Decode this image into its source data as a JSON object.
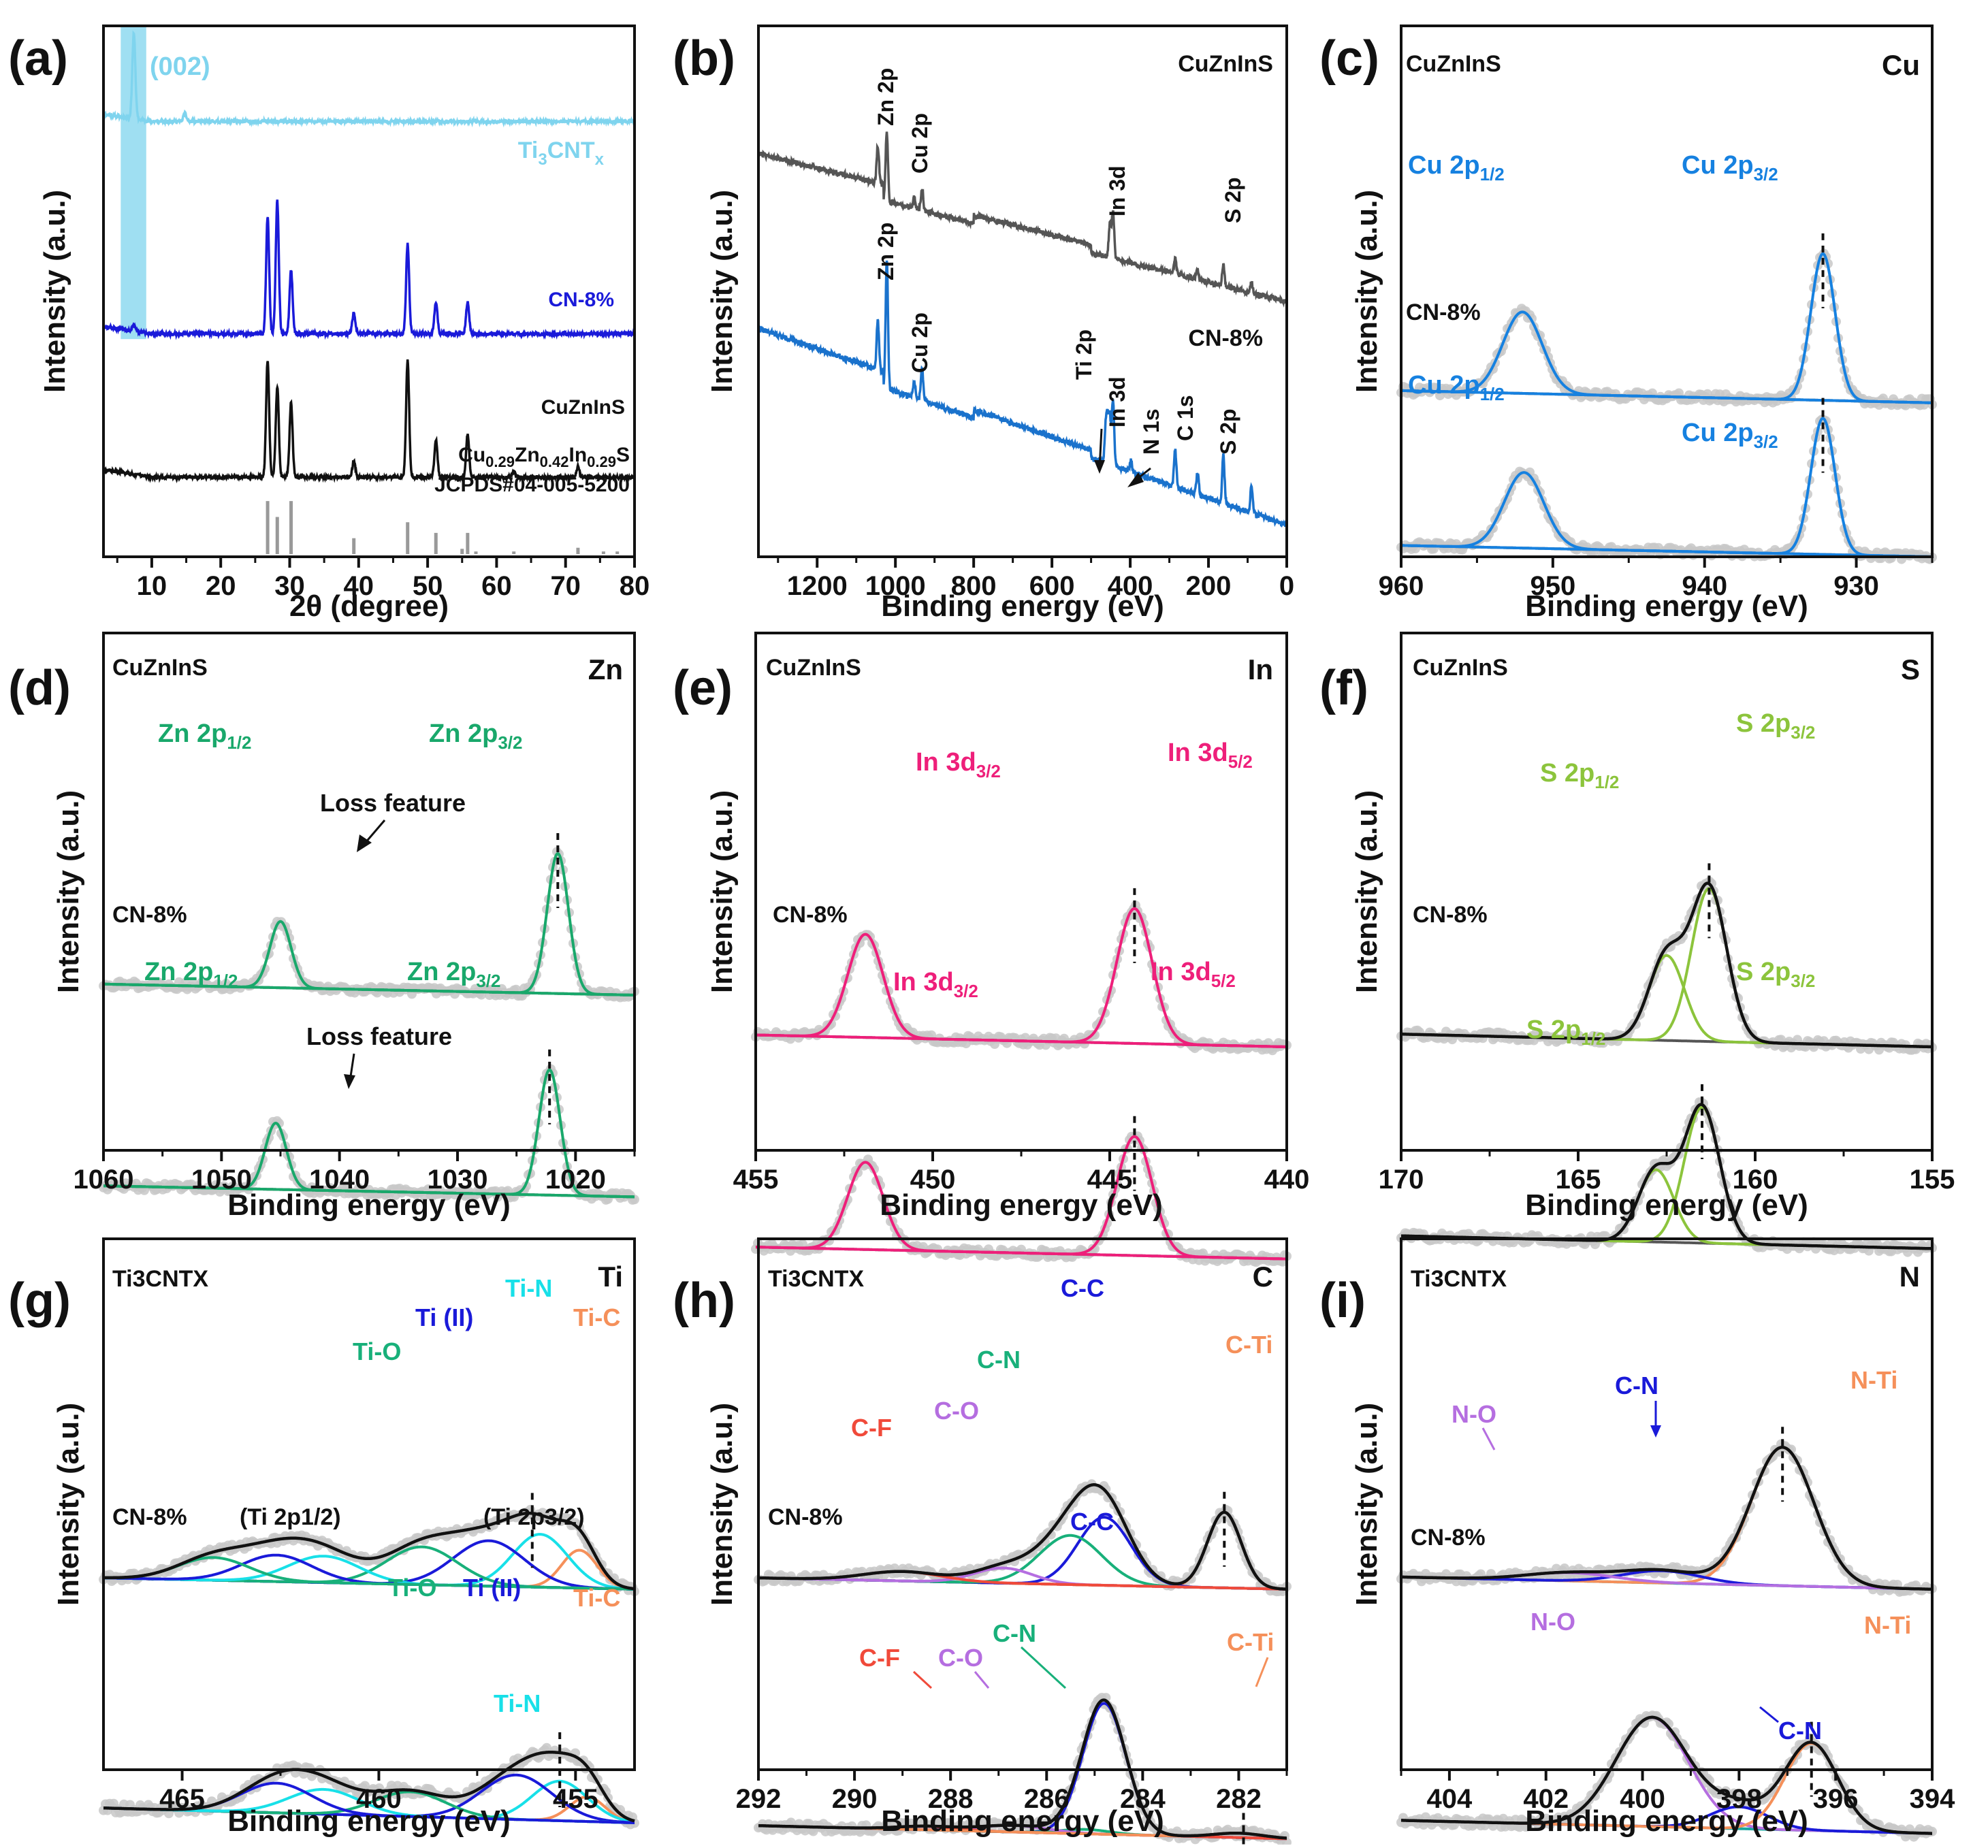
{
  "figure": {
    "panel_labels": [
      "(a)",
      "(b)",
      "(c)",
      "(d)",
      "(e)",
      "(f)",
      "(g)",
      "(h)",
      "(i)"
    ],
    "ylabel": "Intensity (a.u.)",
    "xlabel_xps": "Binding energy (eV)",
    "xlabel_xrd": "2θ (degree)"
  },
  "colors": {
    "gray_data": "#c8c8c8",
    "dark": "#111111",
    "baseline": "#555555",
    "ti3cntx_xrd": "#7fd4ee",
    "cn8_xrd": "#1a1ad9",
    "zn": "#19a86b",
    "cu": "#1681e0",
    "in": "#ee1f7a",
    "s": "#8cc43c",
    "blue": "#1a1ad9",
    "cyan": "#18e0e8",
    "green": "#18b07a",
    "orange": "#f5905a",
    "purple": "#b56ee0",
    "red": "#f04a3a",
    "teal": "#1aa8a0"
  },
  "chart_data": [
    {
      "panel": "(a)",
      "type": "line",
      "xlabel": "2θ (degree)",
      "ylabel": "Intensity (a.u.)",
      "xlim": [
        3,
        80
      ],
      "xticks": [
        10,
        20,
        30,
        40,
        50,
        60,
        70,
        80
      ],
      "highlight": {
        "label": "(002)",
        "x_range": [
          5.5,
          9.2
        ]
      },
      "series": [
        {
          "name": "Ti3CNTx",
          "label_main": "Ti",
          "label_sub1": "3",
          "label_mid": "CNT",
          "label_sub2": "x",
          "base": 0.82,
          "peaks": [
            [
              7.4,
              0.16
            ],
            [
              14.8,
              0.015
            ]
          ]
        },
        {
          "name": "CN-8%",
          "label": "CN-8%",
          "base": 0.42,
          "peaks": [
            [
              7.4,
              0.01
            ],
            [
              26.8,
              0.22
            ],
            [
              28.2,
              0.25
            ],
            [
              30.2,
              0.12
            ],
            [
              39.3,
              0.04
            ],
            [
              47.1,
              0.17
            ],
            [
              51.2,
              0.06
            ],
            [
              55.8,
              0.06
            ]
          ]
        },
        {
          "name": "CuZnInS",
          "label": "CuZnInS",
          "base": 0.15,
          "peaks": [
            [
              26.8,
              0.22
            ],
            [
              28.2,
              0.17
            ],
            [
              30.2,
              0.14
            ],
            [
              39.3,
              0.03
            ],
            [
              47.1,
              0.22
            ],
            [
              51.2,
              0.07
            ],
            [
              55.8,
              0.08
            ],
            [
              62.5,
              0.01
            ],
            [
              71.8,
              0.02
            ]
          ]
        }
      ],
      "reference": {
        "formula": "Cu0.29Zn0.42In0.29S",
        "label_parts": [
          "Cu",
          "0.29",
          "Zn",
          "0.42",
          "In",
          "0.29",
          "S"
        ],
        "jcpds": "JCPDS#04-005-5200",
        "sticks": [
          [
            26.8,
            0.1
          ],
          [
            28.2,
            0.07
          ],
          [
            30.2,
            0.1
          ],
          [
            39.3,
            0.03
          ],
          [
            47.1,
            0.06
          ],
          [
            51.2,
            0.04
          ],
          [
            55.0,
            0.01
          ],
          [
            55.8,
            0.04
          ],
          [
            57.0,
            0.005
          ],
          [
            62.5,
            0.005
          ],
          [
            71.8,
            0.012
          ],
          [
            75.5,
            0.005
          ],
          [
            77.5,
            0.005
          ]
        ]
      }
    },
    {
      "panel": "(b)",
      "type": "line",
      "xlabel": "Binding energy (eV)",
      "ylabel": "Intensity (a.u.)",
      "xlim": [
        1350,
        0
      ],
      "xticks": [
        1200,
        1000,
        800,
        600,
        400,
        200,
        0
      ],
      "series": [
        {
          "name": "CuZnInS",
          "label": "CuZnInS",
          "base_start": 0.73,
          "base_end": 0.48
        },
        {
          "name": "CN-8%",
          "label": "CN-8%",
          "base_start": 0.4,
          "base_end": 0.06
        }
      ],
      "annotations": [
        "Zn 2p",
        "Cu 2p",
        "In 3d",
        "S 2p",
        "Ti 2p",
        "N 1s",
        "C 1s"
      ]
    },
    {
      "panel": "(c)",
      "element": "Cu",
      "type": "line",
      "xlabel": "Binding energy (eV)",
      "xlim": [
        960,
        925
      ],
      "xticks": [
        960,
        950,
        940,
        930
      ],
      "top_label": "CuZnInS",
      "bottom_label": "CN-8%",
      "top_components": [
        {
          "label": "Cu 2p1/2",
          "main": "Cu 2p",
          "sub": "1/2",
          "center": 952.0,
          "height": 0.2,
          "width": 1.3
        },
        {
          "label": "Cu 2p3/2",
          "main": "Cu 2p",
          "sub": "3/2",
          "center": 932.2,
          "height": 0.36,
          "width": 0.8
        }
      ],
      "bottom_components": [
        {
          "label": "Cu 2p1/2",
          "main": "Cu 2p",
          "sub": "1/2",
          "center": 951.9,
          "height": 0.2,
          "width": 1.3
        },
        {
          "label": "Cu 2p3/2",
          "main": "Cu 2p",
          "sub": "3/2",
          "center": 932.2,
          "height": 0.36,
          "width": 0.8
        }
      ],
      "dashed": [
        932.2,
        932.2
      ]
    },
    {
      "panel": "(d)",
      "element": "Zn",
      "type": "line",
      "xlabel": "Binding energy (eV)",
      "xlim": [
        1060,
        1015
      ],
      "xticks": [
        1060,
        1050,
        1040,
        1030,
        1020
      ],
      "top_label": "CuZnInS",
      "bottom_label": "CN-8%",
      "annotation": "Loss feature",
      "top_components": [
        {
          "label": "Zn 2p1/2",
          "main": "Zn 2p",
          "sub": "1/2",
          "center": 1045.0,
          "height": 0.18,
          "width": 0.9
        },
        {
          "label": "Zn 2p3/2",
          "main": "Zn 2p",
          "sub": "3/2",
          "center": 1021.5,
          "height": 0.38,
          "width": 0.9
        }
      ],
      "bottom_components": [
        {
          "label": "Zn 2p1/2",
          "main": "Zn 2p",
          "sub": "1/2",
          "center": 1045.4,
          "height": 0.18,
          "width": 0.9
        },
        {
          "label": "Zn 2p3/2",
          "main": "Zn 2p",
          "sub": "3/2",
          "center": 1022.2,
          "height": 0.34,
          "width": 0.9
        }
      ],
      "dashed": [
        1021.5,
        1022.2
      ]
    },
    {
      "panel": "(e)",
      "element": "In",
      "type": "line",
      "xlabel": "Binding energy (eV)",
      "xlim": [
        455,
        440
      ],
      "xticks": [
        455,
        450,
        445,
        440
      ],
      "top_label": "CuZnInS",
      "bottom_label": "CN-8%",
      "top_components": [
        {
          "label": "In 3d3/2",
          "main": "In 3d",
          "sub": "3/2",
          "center": 451.9,
          "height": 0.26,
          "width": 0.5
        },
        {
          "label": "In 3d5/2",
          "main": "In 3d",
          "sub": "5/2",
          "center": 444.3,
          "height": 0.34,
          "width": 0.5
        }
      ],
      "bottom_components": [
        {
          "label": "In 3d3/2",
          "main": "In 3d",
          "sub": "3/2",
          "center": 451.9,
          "height": 0.22,
          "width": 0.5
        },
        {
          "label": "In 3d5/2",
          "main": "In 3d",
          "sub": "5/2",
          "center": 444.3,
          "height": 0.3,
          "width": 0.5
        }
      ],
      "dashed": [
        444.3,
        444.3
      ]
    },
    {
      "panel": "(f)",
      "element": "S",
      "type": "line",
      "xlabel": "Binding energy (eV)",
      "xlim": [
        170,
        155
      ],
      "xticks": [
        170,
        165,
        160,
        155
      ],
      "top_label": "CuZnInS",
      "bottom_label": "CN-8%",
      "top_components": [
        {
          "label": "S 2p1/2",
          "main": "S 2p",
          "sub": "1/2",
          "center": 162.5,
          "height": 0.2,
          "width": 0.5
        },
        {
          "label": "S 2p3/2",
          "main": "S 2p",
          "sub": "3/2",
          "center": 161.3,
          "height": 0.36,
          "width": 0.5
        }
      ],
      "bottom_components": [
        {
          "label": "S 2p1/2",
          "main": "S 2p",
          "sub": "1/2",
          "center": 162.8,
          "height": 0.17,
          "width": 0.5
        },
        {
          "label": "S 2p3/2",
          "main": "S 2p",
          "sub": "3/2",
          "center": 161.5,
          "height": 0.32,
          "width": 0.5
        }
      ],
      "dashed": [
        161.3,
        161.5
      ]
    },
    {
      "panel": "(g)",
      "element": "Ti",
      "type": "line",
      "xlabel": "Binding energy (eV)",
      "xlim": [
        467,
        453.5
      ],
      "xticks": [
        465,
        460,
        455
      ],
      "top_label": "Ti3CNTX",
      "bottom_label": "CN-8%",
      "group_labels": [
        "(Ti 2p1/2)",
        "(Ti 2p3/2)"
      ],
      "top_components": [
        {
          "label": "Ti-C",
          "center": 454.9,
          "height": 0.1,
          "width": 0.45,
          "color": "orange"
        },
        {
          "label": "Ti-N",
          "center": 455.9,
          "height": 0.14,
          "width": 0.7,
          "color": "cyan"
        },
        {
          "label": "Ti (II)",
          "center": 457.2,
          "height": 0.12,
          "width": 0.9,
          "color": "blue"
        },
        {
          "label": "Ti-O",
          "center": 458.9,
          "height": 0.1,
          "width": 0.9,
          "color": "green"
        },
        {
          "label": "",
          "center": 461.4,
          "height": 0.07,
          "width": 0.9,
          "color": "cyan"
        },
        {
          "label": "",
          "center": 462.6,
          "height": 0.07,
          "width": 0.9,
          "color": "blue"
        },
        {
          "label": "",
          "center": 464.2,
          "height": 0.06,
          "width": 0.9,
          "color": "green"
        }
      ],
      "bottom_components": [
        {
          "label": "Ti-C",
          "center": 454.7,
          "height": 0.05,
          "width": 0.45,
          "color": "orange"
        },
        {
          "label": "Ti-N",
          "center": 455.4,
          "height": 0.08,
          "width": 0.7,
          "color": "cyan"
        },
        {
          "label": "Ti (II)",
          "center": 456.5,
          "height": 0.09,
          "width": 0.9,
          "color": "blue"
        },
        {
          "label": "Ti-O",
          "center": 459.2,
          "height": 0.05,
          "width": 0.9,
          "color": "green"
        },
        {
          "label": "",
          "center": 461.4,
          "height": 0.05,
          "width": 0.9,
          "color": "cyan"
        },
        {
          "label": "",
          "center": 462.6,
          "height": 0.06,
          "width": 0.9,
          "color": "blue"
        }
      ],
      "dashed": [
        456.1,
        455.4
      ]
    },
    {
      "panel": "(h)",
      "element": "C",
      "type": "line",
      "xlabel": "Binding energy (eV)",
      "xlim": [
        292,
        281
      ],
      "xticks": [
        292,
        290,
        288,
        286,
        284,
        282
      ],
      "top_label": "Ti3CNTX",
      "bottom_label": "CN-8%",
      "top_components": [
        {
          "label": "C-Ti",
          "center": 282.3,
          "height": 0.2,
          "width": 0.35,
          "color": "orange"
        },
        {
          "label": "C-C",
          "center": 284.8,
          "height": 0.18,
          "width": 0.55,
          "color": "blue"
        },
        {
          "label": "C-N",
          "center": 285.5,
          "height": 0.13,
          "width": 0.65,
          "color": "green"
        },
        {
          "label": "C-O",
          "center": 286.9,
          "height": 0.04,
          "width": 0.6,
          "color": "purple"
        },
        {
          "label": "C-F",
          "center": 289.0,
          "height": 0.025,
          "width": 0.8,
          "color": "red"
        }
      ],
      "bottom_components": [
        {
          "label": "C-C",
          "center": 284.8,
          "height": 0.3,
          "width": 0.45,
          "color": "blue"
        },
        {
          "label": "C-N",
          "center": 285.2,
          "height": 0.01,
          "width": 0.5,
          "color": "green"
        },
        {
          "label": "C-O",
          "center": 286.7,
          "height": 0.015,
          "width": 0.7,
          "color": "purple"
        },
        {
          "label": "C-F",
          "center": 288.5,
          "height": 0.008,
          "width": 0.6,
          "color": "red"
        },
        {
          "label": "C-Ti",
          "center": 282.0,
          "height": 0.01,
          "width": 0.5,
          "color": "orange"
        }
      ],
      "dashed": [
        282.3,
        281.9
      ]
    },
    {
      "panel": "(i)",
      "element": "N",
      "type": "line",
      "xlabel": "Binding energy (eV)",
      "xlim": [
        405,
        394
      ],
      "xticks": [
        404,
        402,
        400,
        398,
        396,
        394
      ],
      "top_label": "Ti3CNTX",
      "bottom_label": "CN-8%",
      "top_components": [
        {
          "label": "N-Ti",
          "center": 397.1,
          "height": 0.34,
          "width": 0.65,
          "color": "orange"
        },
        {
          "label": "C-N",
          "center": 399.6,
          "height": 0.03,
          "width": 0.8,
          "color": "blue"
        },
        {
          "label": "N-O",
          "center": 401.5,
          "height": 0.02,
          "width": 0.9,
          "color": "purple"
        }
      ],
      "bottom_components": [
        {
          "label": "N-O",
          "center": 399.8,
          "height": 0.25,
          "width": 0.75,
          "color": "purple"
        },
        {
          "label": "C-N",
          "center": 398.0,
          "height": 0.05,
          "width": 0.6,
          "color": "blue"
        },
        {
          "label": "N-Ti",
          "center": 396.5,
          "height": 0.2,
          "width": 0.55,
          "color": "orange"
        }
      ],
      "dashed": [
        397.1,
        396.5
      ]
    }
  ]
}
